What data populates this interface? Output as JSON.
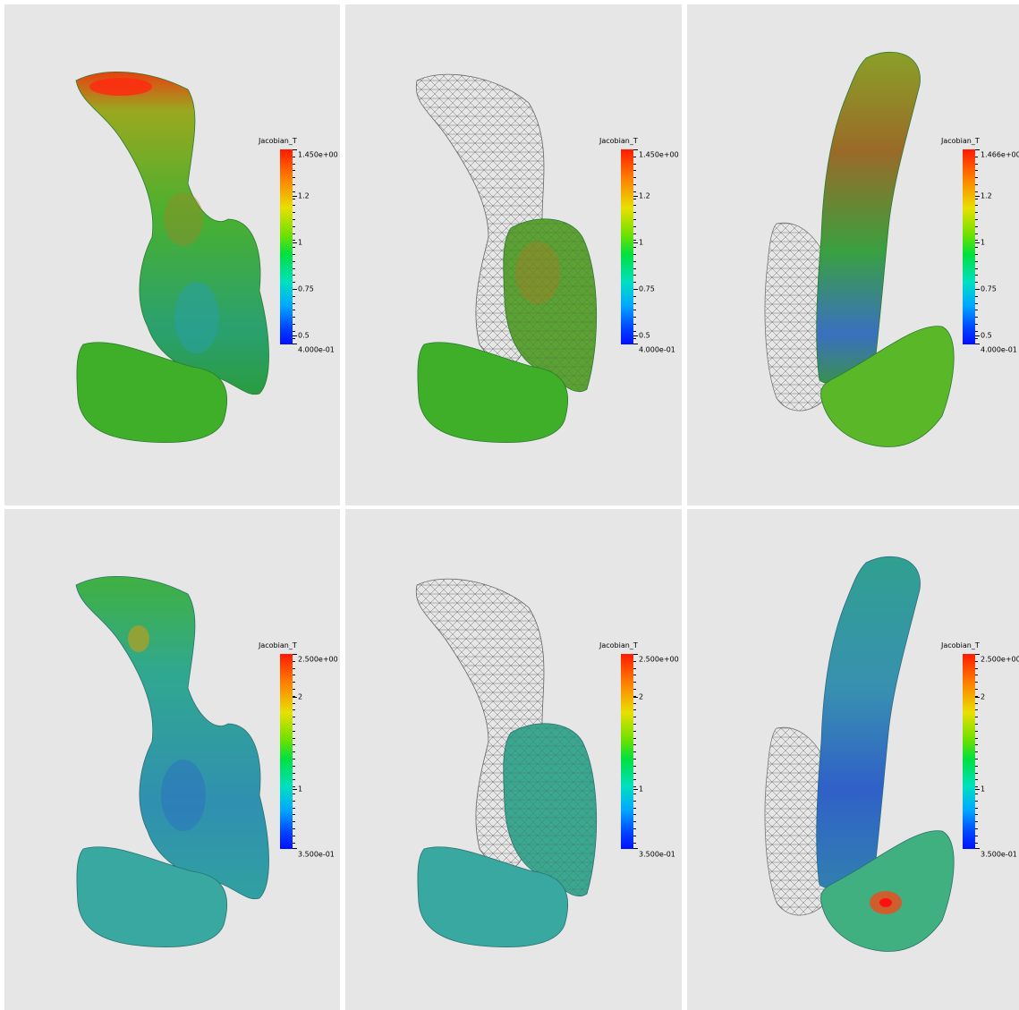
{
  "colorbar_title": "Jacobian_T",
  "panels": [
    {
      "max_label": "1.450e+00",
      "min_label": "4.000e-01",
      "ticks": [
        "1.2",
        "1",
        "0.75",
        "0.5"
      ]
    },
    {
      "max_label": "1.450e+00",
      "min_label": "4.000e-01",
      "ticks": [
        "1.2",
        "1",
        "0.75",
        "0.5"
      ]
    },
    {
      "max_label": "1.466e+00",
      "min_label": "4.000e-01",
      "ticks": [
        "1.2",
        "1",
        "0.75",
        "0.5"
      ]
    },
    {
      "max_label": "2.500e+00",
      "min_label": "3.500e-01",
      "ticks": [
        "2",
        "1"
      ]
    },
    {
      "max_label": "2.500e+00",
      "min_label": "3.500e-01",
      "ticks": [
        "2",
        "1"
      ]
    },
    {
      "max_label": "2.500e+00",
      "min_label": "3.500e-01",
      "ticks": [
        "2",
        "1"
      ]
    }
  ]
}
